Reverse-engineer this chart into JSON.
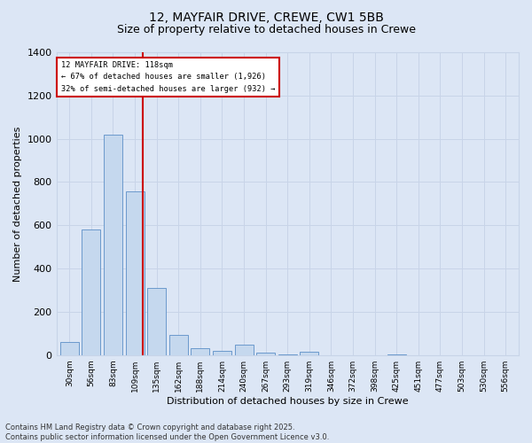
{
  "title1": "12, MAYFAIR DRIVE, CREWE, CW1 5BB",
  "title2": "Size of property relative to detached houses in Crewe",
  "xlabel": "Distribution of detached houses by size in Crewe",
  "ylabel": "Number of detached properties",
  "annotation_title": "12 MAYFAIR DRIVE: 118sqm",
  "annotation_line1": "← 67% of detached houses are smaller (1,926)",
  "annotation_line2": "32% of semi-detached houses are larger (932) →",
  "footer1": "Contains HM Land Registry data © Crown copyright and database right 2025.",
  "footer2": "Contains public sector information licensed under the Open Government Licence v3.0.",
  "bar_color": "#c5d8ee",
  "bar_edge_color": "#5b8fc7",
  "grid_color": "#c8d4e8",
  "background_color": "#dce6f5",
  "redline_color": "#cc0000",
  "annotation_box_color": "#ffffff",
  "annotation_box_edge": "#cc0000",
  "categories": [
    "30sqm",
    "56sqm",
    "83sqm",
    "109sqm",
    "135sqm",
    "162sqm",
    "188sqm",
    "214sqm",
    "240sqm",
    "267sqm",
    "293sqm",
    "319sqm",
    "346sqm",
    "372sqm",
    "398sqm",
    "425sqm",
    "451sqm",
    "477sqm",
    "503sqm",
    "530sqm",
    "556sqm"
  ],
  "bin_starts": [
    30,
    56,
    83,
    109,
    135,
    162,
    188,
    214,
    240,
    267,
    293,
    319,
    346,
    372,
    398,
    425,
    451,
    477,
    503,
    530,
    556
  ],
  "bin_width": 27,
  "values": [
    60,
    580,
    1020,
    755,
    310,
    95,
    30,
    18,
    48,
    10,
    4,
    14,
    0,
    0,
    0,
    4,
    0,
    0,
    0,
    0,
    0
  ],
  "redline_x": 118,
  "ylim": [
    0,
    1400
  ],
  "yticks": [
    0,
    200,
    400,
    600,
    800,
    1000,
    1200,
    1400
  ],
  "title_fontsize": 10,
  "subtitle_fontsize": 9,
  "footer_fontsize": 6,
  "ylabel_fontsize": 8,
  "xlabel_fontsize": 8
}
